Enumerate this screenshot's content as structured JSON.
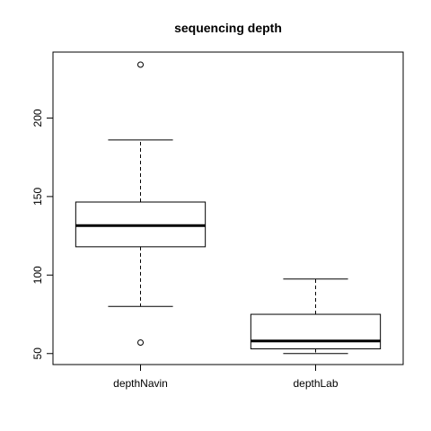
{
  "chart_data": {
    "type": "boxplot",
    "title": "sequencing depth",
    "xlabel": "",
    "ylabel": "",
    "categories": [
      "depthNavin",
      "depthLab"
    ],
    "ylim": [
      43,
      242
    ],
    "yticks": [
      "50",
      "100",
      "150",
      "200"
    ],
    "boxes": [
      {
        "name": "depthNavin",
        "whisker_low": 80,
        "q1": 118,
        "median": 131.5,
        "q3": 146.5,
        "whisker_high": 186,
        "outliers": [
          234,
          57
        ]
      },
      {
        "name": "depthLab",
        "whisker_low": 50,
        "q1": 53,
        "median": 58,
        "q3": 75,
        "whisker_high": 97.5,
        "outliers": []
      }
    ],
    "grid": false,
    "colors": {
      "box_fill": "#ffffff",
      "stroke": "#000000"
    }
  }
}
